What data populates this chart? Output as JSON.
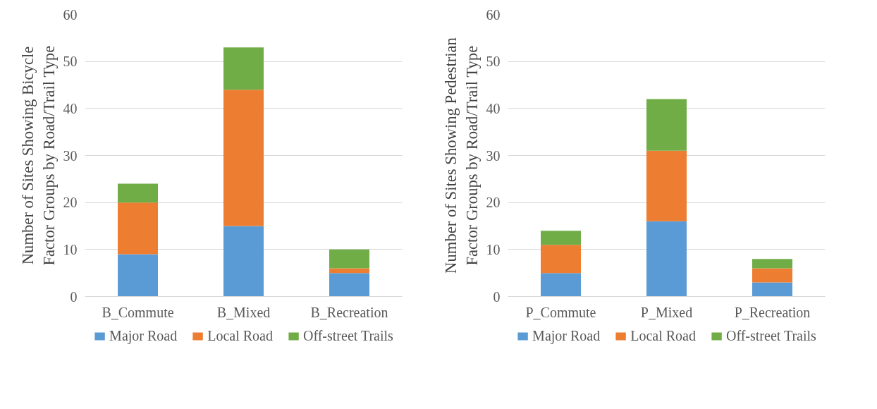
{
  "chart_data": [
    {
      "type": "bar",
      "stacked": true,
      "ylabel": "Number of Sites Showing Bicycle Factor Groups by Road/Trail Type",
      "categories": [
        "B_Commute",
        "B_Mixed",
        "B_Recreation"
      ],
      "ylim": [
        0,
        60
      ],
      "yticks": [
        0,
        10,
        20,
        30,
        40,
        50,
        60
      ],
      "grid": "y",
      "legend": "bottom",
      "series": [
        {
          "name": "Major Road",
          "color": "#5b9bd5",
          "values": [
            9,
            15,
            5
          ]
        },
        {
          "name": "Local Road",
          "color": "#ed7d31",
          "values": [
            11,
            29,
            1
          ]
        },
        {
          "name": "Off-street Trails",
          "color": "#70ad47",
          "values": [
            4,
            9,
            4
          ]
        }
      ]
    },
    {
      "type": "bar",
      "stacked": true,
      "ylabel": "Number of Sites Showing Pedestrian Factor Groups by Road/Trail Type",
      "categories": [
        "P_Commute",
        "P_Mixed",
        "P_Recreation"
      ],
      "ylim": [
        0,
        60
      ],
      "yticks": [
        0,
        10,
        20,
        30,
        40,
        50,
        60
      ],
      "grid": "y",
      "legend": "bottom",
      "series": [
        {
          "name": "Major Road",
          "color": "#5b9bd5",
          "values": [
            5,
            16,
            3
          ]
        },
        {
          "name": "Local Road",
          "color": "#ed7d31",
          "values": [
            6,
            15,
            3
          ]
        },
        {
          "name": "Off-street Trails",
          "color": "#70ad47",
          "values": [
            3,
            11,
            2
          ]
        }
      ]
    }
  ]
}
